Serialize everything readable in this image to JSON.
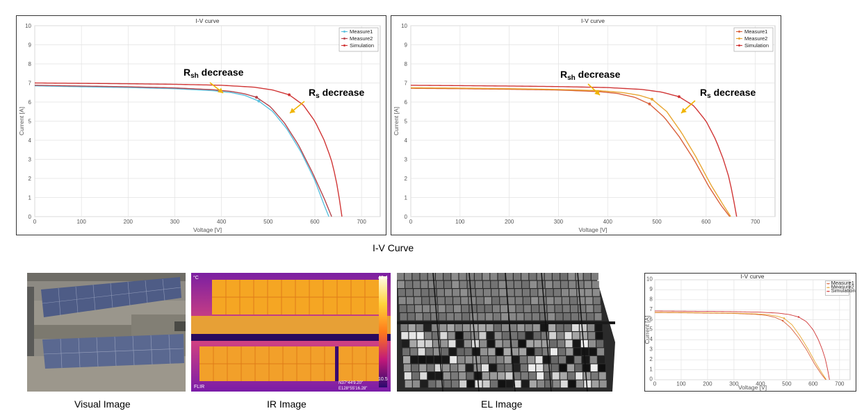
{
  "captions": {
    "iv_curve": "I-V Curve",
    "visual": "Visual Image",
    "ir": "IR Image",
    "el": "EL Image"
  },
  "annotations": {
    "rsh_main": "R",
    "rsh_sub": "sh",
    "rsh_tail": " decrease",
    "rs_main": "R",
    "rs_sub": "s",
    "rs_tail": " decrease"
  },
  "ir_labels": {
    "unit": "°C",
    "max": "42.4",
    "min": "10.5",
    "brand": "FLIR",
    "gps1": "N37°44'9.20\"",
    "gps2": "E128°55'16.28\""
  },
  "colors": {
    "measure1_a": "#5bc0de",
    "measure2_a": "#b5444c",
    "simulation": "#d03535",
    "measure1_b": "#d9603b",
    "measure2_b": "#e8a531",
    "arrow": "#f0b400",
    "grid": "#e2e2e2"
  },
  "chart_data": [
    {
      "type": "line",
      "title": "I-V curve",
      "xlabel": "Voltage [V]",
      "ylabel": "Current [A]",
      "xlim": [
        0,
        740
      ],
      "ylim": [
        0,
        10
      ],
      "xticks": [
        0,
        100,
        200,
        300,
        400,
        500,
        600,
        700
      ],
      "yticks": [
        0,
        1,
        2,
        3,
        4,
        5,
        6,
        7,
        8,
        9,
        10
      ],
      "grid": true,
      "legend_position": "top-right",
      "series": [
        {
          "name": "Measure1",
          "color": "#5bc0de",
          "marker_x": 480,
          "x": [
            0,
            100,
            200,
            300,
            380,
            420,
            450,
            480,
            510,
            540,
            570,
            600,
            620,
            630
          ],
          "y": [
            6.85,
            6.8,
            6.76,
            6.7,
            6.6,
            6.5,
            6.35,
            6.05,
            5.5,
            4.6,
            3.4,
            1.9,
            0.6,
            0.0
          ]
        },
        {
          "name": "Measure2",
          "color": "#b5444c",
          "marker_x": 475,
          "x": [
            0,
            100,
            200,
            300,
            380,
            420,
            450,
            475,
            505,
            535,
            565,
            595,
            620,
            636
          ],
          "y": [
            6.88,
            6.84,
            6.8,
            6.74,
            6.65,
            6.56,
            6.43,
            6.25,
            5.75,
            4.9,
            3.75,
            2.3,
            0.95,
            0.0
          ]
        },
        {
          "name": "Simulation",
          "color": "#d03535",
          "marker_x": 545,
          "x": [
            0,
            100,
            200,
            300,
            400,
            470,
            510,
            545,
            575,
            600,
            620,
            635,
            645,
            652,
            658
          ],
          "y": [
            7.0,
            6.98,
            6.96,
            6.93,
            6.88,
            6.78,
            6.63,
            6.38,
            5.85,
            5.0,
            4.0,
            3.0,
            2.0,
            1.0,
            0.0
          ]
        }
      ]
    },
    {
      "type": "line",
      "title": "I-V curve",
      "xlabel": "Voltage [V]",
      "ylabel": "Current [A]",
      "xlim": [
        0,
        740
      ],
      "ylim": [
        0,
        10
      ],
      "xticks": [
        0,
        100,
        200,
        300,
        400,
        500,
        600,
        700
      ],
      "yticks": [
        0,
        1,
        2,
        3,
        4,
        5,
        6,
        7,
        8,
        9,
        10
      ],
      "grid": true,
      "legend_position": "top-right",
      "series": [
        {
          "name": "Measure1",
          "color": "#d9603b",
          "marker_x": 485,
          "x": [
            0,
            100,
            200,
            300,
            380,
            420,
            455,
            485,
            515,
            545,
            575,
            605,
            630,
            648
          ],
          "y": [
            6.72,
            6.7,
            6.67,
            6.63,
            6.55,
            6.45,
            6.25,
            5.9,
            5.2,
            4.2,
            3.0,
            1.6,
            0.6,
            0.0
          ]
        },
        {
          "name": "Measure2",
          "color": "#e8a531",
          "marker_x": 490,
          "x": [
            0,
            100,
            200,
            300,
            380,
            430,
            465,
            490,
            520,
            550,
            580,
            610,
            635,
            650
          ],
          "y": [
            6.75,
            6.73,
            6.7,
            6.66,
            6.6,
            6.5,
            6.35,
            6.15,
            5.5,
            4.4,
            3.1,
            1.65,
            0.6,
            0.0
          ]
        },
        {
          "name": "Simulation",
          "color": "#d03535",
          "marker_x": 545,
          "x": [
            0,
            100,
            200,
            300,
            400,
            470,
            510,
            545,
            575,
            600,
            620,
            635,
            647,
            655,
            662
          ],
          "y": [
            6.88,
            6.86,
            6.84,
            6.81,
            6.76,
            6.66,
            6.52,
            6.28,
            5.8,
            5.0,
            4.0,
            3.0,
            2.0,
            1.0,
            0.0
          ]
        }
      ]
    },
    {
      "type": "line",
      "title": "I-V curve",
      "xlabel": "Voltage [V]",
      "ylabel": "Current [A]",
      "xlim": [
        0,
        740
      ],
      "ylim": [
        0,
        10
      ],
      "xticks": [
        0,
        100,
        200,
        300,
        400,
        500,
        600,
        700
      ],
      "yticks": [
        0,
        1,
        2,
        3,
        4,
        5,
        6,
        7,
        8,
        9,
        10
      ],
      "grid": true,
      "legend_position": "top-right",
      "series": [
        {
          "name": "Measure1",
          "color": "#d9603b",
          "marker_x": 485,
          "x": [
            0,
            100,
            200,
            300,
            380,
            420,
            455,
            485,
            515,
            545,
            575,
            605,
            630,
            648
          ],
          "y": [
            6.72,
            6.7,
            6.67,
            6.63,
            6.55,
            6.45,
            6.25,
            5.9,
            5.2,
            4.2,
            3.0,
            1.6,
            0.6,
            0.0
          ]
        },
        {
          "name": "Measure2",
          "color": "#e8a531",
          "marker_x": 490,
          "x": [
            0,
            100,
            200,
            300,
            380,
            430,
            465,
            490,
            520,
            550,
            580,
            610,
            635,
            650
          ],
          "y": [
            6.75,
            6.73,
            6.7,
            6.66,
            6.6,
            6.5,
            6.35,
            6.15,
            5.5,
            4.4,
            3.1,
            1.65,
            0.6,
            0.0
          ]
        },
        {
          "name": "Simulation",
          "color": "#d03535",
          "marker_x": 545,
          "x": [
            0,
            100,
            200,
            300,
            400,
            470,
            510,
            545,
            575,
            600,
            620,
            635,
            647,
            655,
            662
          ],
          "y": [
            6.88,
            6.86,
            6.84,
            6.81,
            6.76,
            6.66,
            6.52,
            6.28,
            5.8,
            5.0,
            4.0,
            3.0,
            2.0,
            1.0,
            0.0
          ]
        }
      ]
    }
  ]
}
